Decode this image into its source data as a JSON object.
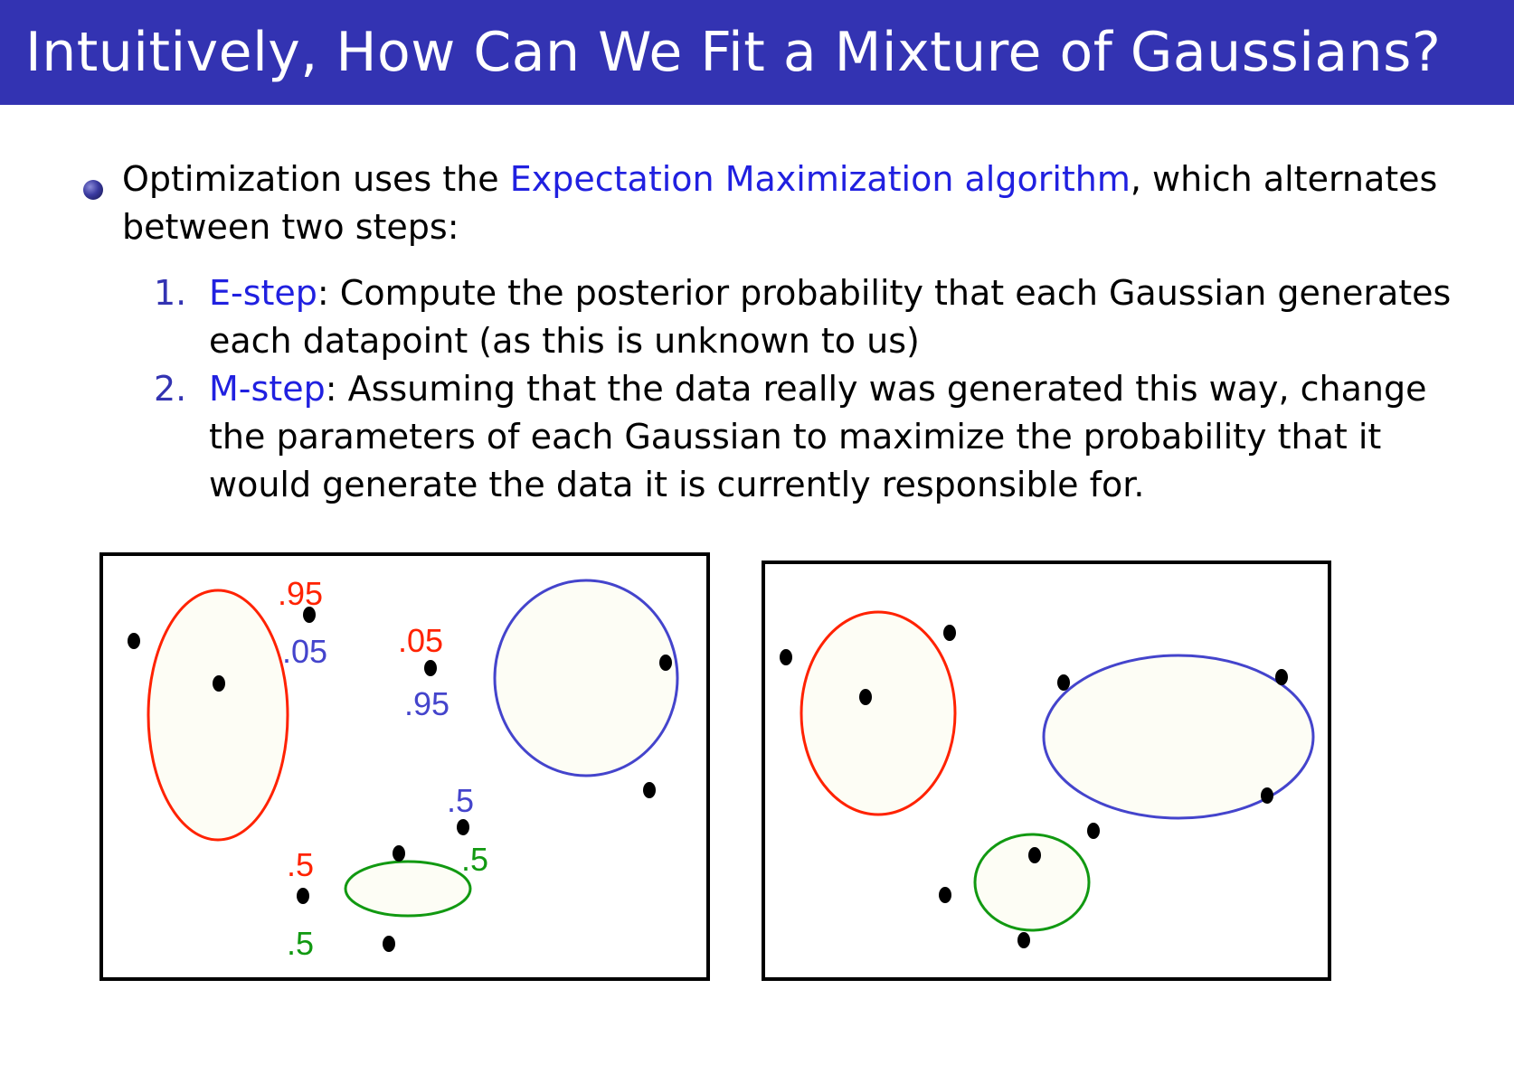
{
  "slide": {
    "title": "Intuitively, How Can We Fit a Mixture of Gaussians?"
  },
  "bullet": {
    "text_before": "Optimization uses the ",
    "link": "Expectation Maximization algorithm",
    "text_after": ", which alternates",
    "line2": "between two steps:"
  },
  "steps": [
    {
      "number": "1.",
      "name": "E-step",
      "line1": ": Compute the posterior probability that each Gaussian generates",
      "line2": "each datapoint (as this is unknown to us)"
    },
    {
      "number": "2.",
      "name": "M-step",
      "line1": ": Assuming that the data really was generated this way, change",
      "line2": "the parameters of each Gaussian to maximize the probability that it",
      "line3": "would generate the data it is currently responsible for."
    }
  ],
  "colors": {
    "title_bar": "#3333b2",
    "red": "#ff2200",
    "blue": "#4444cc",
    "green": "#119911",
    "fill": "#fdfdf5"
  },
  "left_figure": {
    "labels": {
      "p1_red": ".95",
      "p1_blue": ".05",
      "p2_red": ".05",
      "p2_blue": ".95",
      "p3_blue": ".5",
      "p3_green": ".5",
      "p4_red": ".5",
      "p4_green": ".5"
    }
  }
}
